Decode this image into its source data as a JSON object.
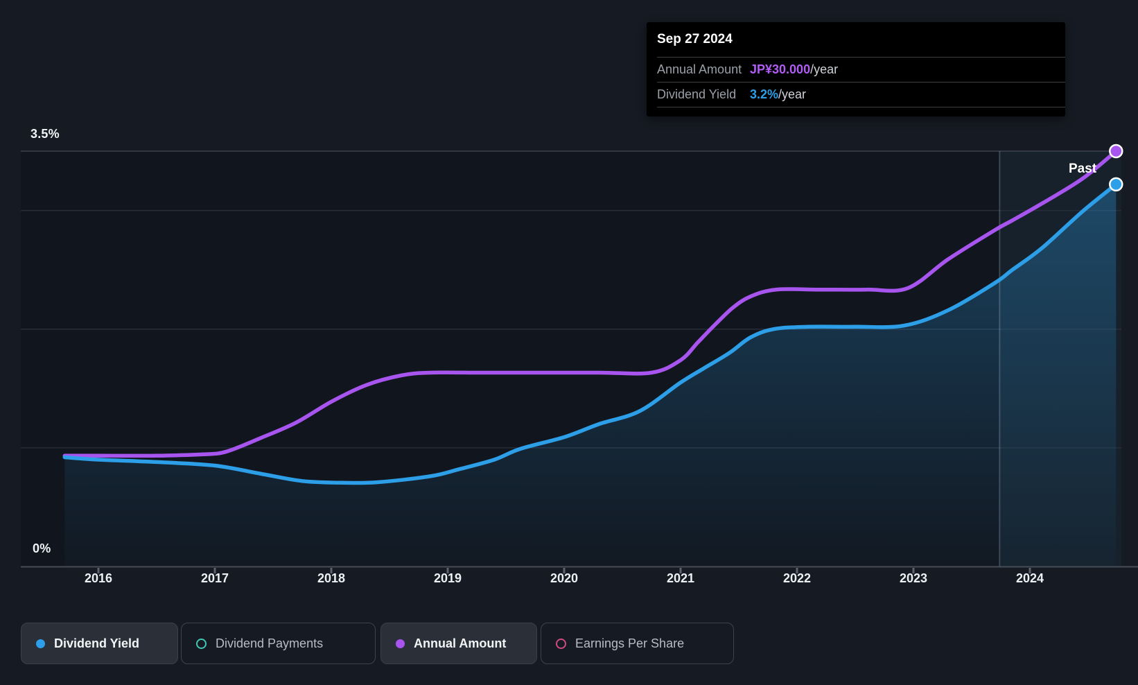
{
  "colors": {
    "background": "#161a22",
    "plot_background": "#11161e",
    "yield_blue": "#2d9fe8",
    "amount_purple": "#a855f0",
    "payments_teal": "#43c6b4",
    "eps_pink": "#cf4b82",
    "gridline": "#272e39",
    "gridline_top": "#3a4350",
    "axis_line": "#464d57"
  },
  "tooltip": {
    "date": "Sep 27 2024",
    "rows": [
      {
        "label": "Annual Amount",
        "value": "JP¥30.000",
        "suffix": "/year",
        "value_color": "#b05cf5"
      },
      {
        "label": "Dividend Yield",
        "value": "3.2%",
        "suffix": "/year",
        "value_color": "#2d9fe8"
      }
    ]
  },
  "chart": {
    "past_label": "Past",
    "y_axis_top_label": "3.5%",
    "y_axis_bottom_label": "0%"
  },
  "legend": [
    {
      "label": "Dividend Yield",
      "color": "#2d9fe8",
      "marker": "filled",
      "active": true
    },
    {
      "label": "Dividend Payments",
      "color": "#43c6b4",
      "marker": "ring",
      "active": false
    },
    {
      "label": "Annual Amount",
      "color": "#a855f0",
      "marker": "filled",
      "active": true
    },
    {
      "label": "Earnings Per Share",
      "color": "#cf4b82",
      "marker": "ring",
      "active": false
    }
  ],
  "chart_data": {
    "type": "area",
    "title": "Dividend yield and annual dividend amount over time",
    "x_unit": "year",
    "x_ticks": [
      2016,
      2017,
      2018,
      2019,
      2020,
      2021,
      2022,
      2023,
      2024
    ],
    "x_range": [
      2015.71,
      2024.79
    ],
    "y_axis": {
      "unit": "%",
      "min": 0,
      "max": 3.5,
      "gridlines": [
        1,
        2,
        3,
        3.5
      ],
      "label_top": "3.5%",
      "label_bottom": "0%"
    },
    "amount_axis_alignment": {
      "amount_at_axis_top": 30,
      "percent_at_axis_top": 3.5
    },
    "past_divider_year": 2023.74,
    "legend_position": "bottom",
    "annotations": {
      "current_date": "Sep 27 2024",
      "annual_amount": "JP¥30.000/year",
      "dividend_yield": "3.2%/year"
    },
    "series": [
      {
        "name": "Dividend Yield",
        "unit": "%",
        "color": "#2d9fe8",
        "area": true,
        "end_marker": true,
        "points": [
          [
            2015.71,
            0.92
          ],
          [
            2016.0,
            0.9
          ],
          [
            2016.5,
            0.88
          ],
          [
            2017.0,
            0.85
          ],
          [
            2017.4,
            0.78
          ],
          [
            2017.75,
            0.72
          ],
          [
            2018.1,
            0.705
          ],
          [
            2018.4,
            0.71
          ],
          [
            2018.85,
            0.76
          ],
          [
            2019.1,
            0.82
          ],
          [
            2019.4,
            0.9
          ],
          [
            2019.62,
            0.99
          ],
          [
            2020.0,
            1.09
          ],
          [
            2020.3,
            1.2
          ],
          [
            2020.65,
            1.31
          ],
          [
            2021.0,
            1.55
          ],
          [
            2021.2,
            1.67
          ],
          [
            2021.42,
            1.8
          ],
          [
            2021.6,
            1.93
          ],
          [
            2021.8,
            2.0
          ],
          [
            2022.1,
            2.02
          ],
          [
            2022.5,
            2.02
          ],
          [
            2022.92,
            2.03
          ],
          [
            2023.3,
            2.16
          ],
          [
            2023.7,
            2.39
          ],
          [
            2023.85,
            2.5
          ],
          [
            2024.1,
            2.68
          ],
          [
            2024.45,
            2.99
          ],
          [
            2024.74,
            3.22
          ]
        ]
      },
      {
        "name": "Annual Amount",
        "unit": "JP¥/year",
        "color": "#a855f0",
        "area": false,
        "end_marker": true,
        "points": [
          [
            2015.71,
            8.0
          ],
          [
            2016.0,
            8.0
          ],
          [
            2016.5,
            8.0
          ],
          [
            2016.9,
            8.1
          ],
          [
            2017.1,
            8.3
          ],
          [
            2017.4,
            9.3
          ],
          [
            2017.7,
            10.4
          ],
          [
            2018.0,
            11.9
          ],
          [
            2018.3,
            13.1
          ],
          [
            2018.6,
            13.8
          ],
          [
            2018.85,
            14.0
          ],
          [
            2019.3,
            14.0
          ],
          [
            2019.8,
            14.0
          ],
          [
            2020.3,
            14.0
          ],
          [
            2020.75,
            14.0
          ],
          [
            2021.0,
            14.9
          ],
          [
            2021.15,
            16.2
          ],
          [
            2021.3,
            17.5
          ],
          [
            2021.45,
            18.7
          ],
          [
            2021.6,
            19.5
          ],
          [
            2021.82,
            20.0
          ],
          [
            2022.2,
            20.0
          ],
          [
            2022.6,
            20.0
          ],
          [
            2022.95,
            20.1
          ],
          [
            2023.3,
            22.2
          ],
          [
            2023.7,
            24.3
          ],
          [
            2023.85,
            25.0
          ],
          [
            2024.1,
            26.2
          ],
          [
            2024.45,
            28.0
          ],
          [
            2024.74,
            30.0
          ]
        ]
      }
    ]
  }
}
